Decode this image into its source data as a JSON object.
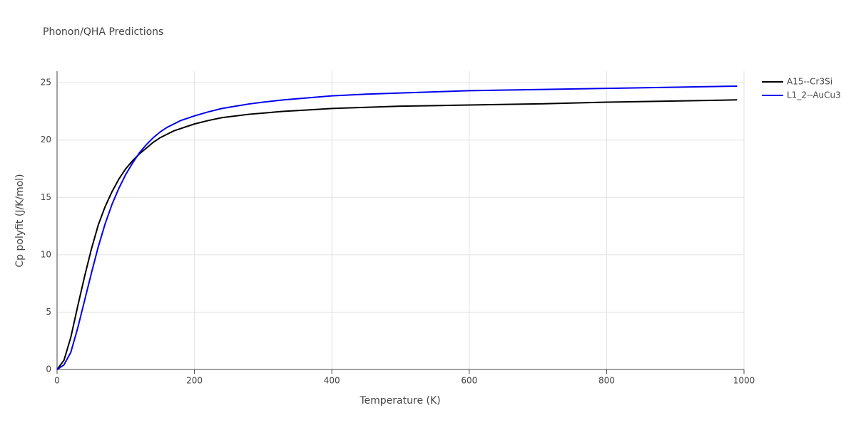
{
  "chart_data": {
    "type": "line",
    "title": "Phonon/QHA Predictions",
    "x_label": "Temperature (K)",
    "y_label": "Cp polyfit (J/K/mol)",
    "x": [
      0,
      10,
      20,
      30,
      40,
      50,
      60,
      70,
      80,
      90,
      100,
      110,
      120,
      130,
      140,
      150,
      160,
      170,
      180,
      200,
      220,
      240,
      260,
      280,
      300,
      330,
      360,
      400,
      450,
      500,
      550,
      600,
      700,
      800,
      900,
      990
    ],
    "series": [
      {
        "name": "A15--Cr3Si",
        "color": "#000000",
        "values": [
          0,
          0.8,
          2.8,
          5.5,
          8.1,
          10.5,
          12.6,
          14.2,
          15.5,
          16.6,
          17.5,
          18.2,
          18.8,
          19.3,
          19.8,
          20.2,
          20.5,
          20.8,
          21.0,
          21.4,
          21.7,
          21.95,
          22.1,
          22.25,
          22.35,
          22.5,
          22.6,
          22.75,
          22.85,
          22.95,
          23.0,
          23.05,
          23.15,
          23.3,
          23.4,
          23.5
        ]
      },
      {
        "name": "L1_2--AuCu3",
        "color": "#0000ee",
        "values": [
          0,
          0.4,
          1.5,
          3.6,
          6.0,
          8.4,
          10.7,
          12.7,
          14.4,
          15.8,
          17.0,
          18.0,
          18.9,
          19.6,
          20.2,
          20.7,
          21.1,
          21.4,
          21.7,
          22.1,
          22.45,
          22.75,
          22.95,
          23.15,
          23.3,
          23.5,
          23.65,
          23.85,
          24.0,
          24.1,
          24.2,
          24.3,
          24.4,
          24.5,
          24.6,
          24.7
        ]
      }
    ],
    "xlim": [
      0,
      1000
    ],
    "xticks": [
      0,
      200,
      400,
      600,
      800,
      1000
    ],
    "ylim": [
      0,
      26
    ],
    "yticks": [
      0,
      5,
      10,
      15,
      20,
      25
    ],
    "grid": true,
    "legend": "right"
  }
}
